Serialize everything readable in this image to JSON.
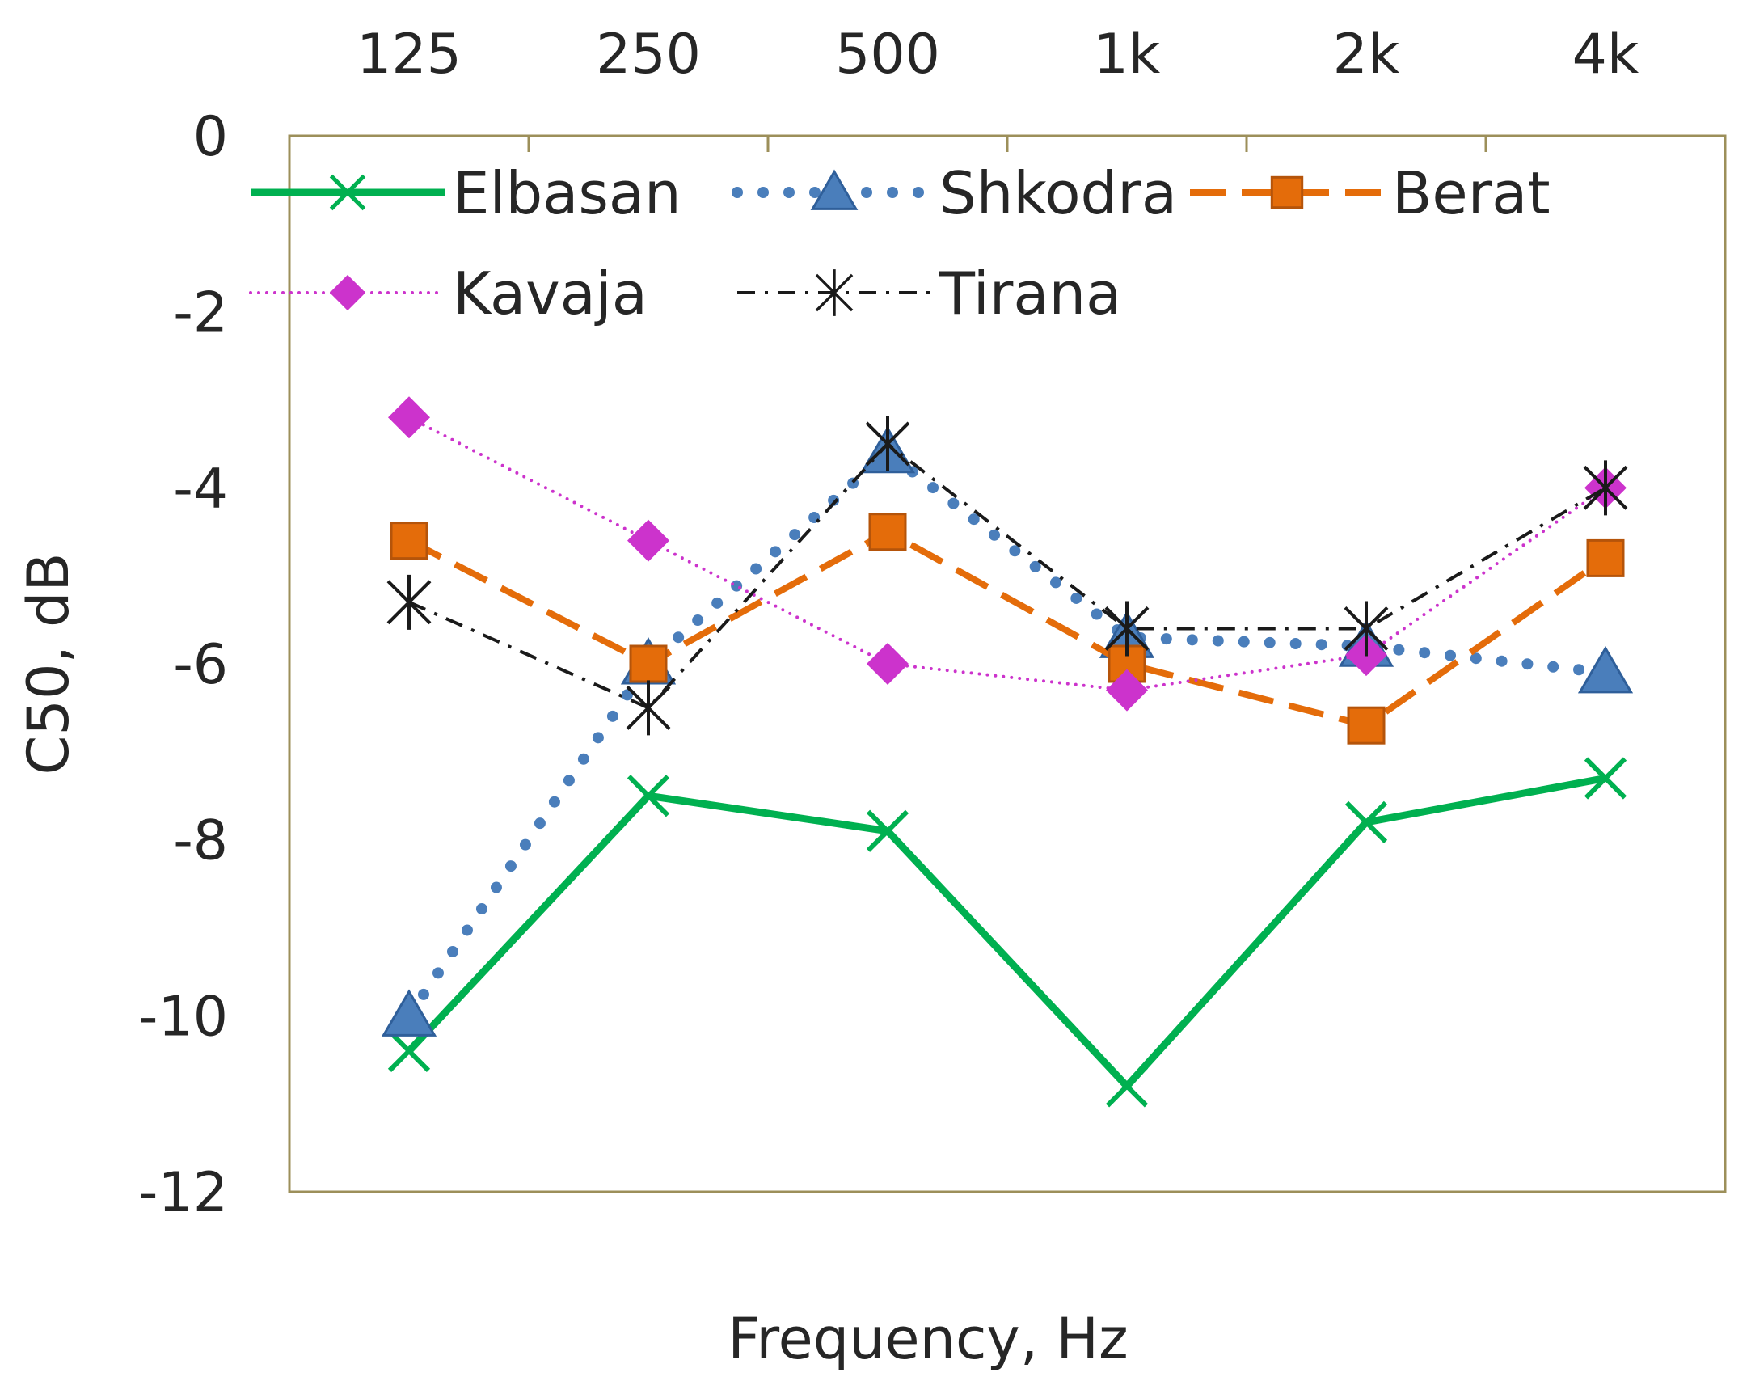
{
  "chart_data": {
    "type": "line",
    "title": "",
    "xlabel": "Frequency, Hz",
    "ylabel": "C50, dB",
    "categories": [
      "125",
      "250",
      "500",
      "1k",
      "2k",
      "4k"
    ],
    "ylim": [
      -12,
      0
    ],
    "yticks": [
      0,
      -2,
      -4,
      -6,
      -8,
      -10,
      -12
    ],
    "ytick_labels": [
      "0",
      "-2",
      "-4",
      "-6",
      "-8",
      "-10",
      "-12"
    ],
    "x_axis_position": "top",
    "grid": false,
    "legend_position": "top",
    "series": [
      {
        "name": "Elbasan",
        "color": "#00b050",
        "marker": "x",
        "line": "solid",
        "values": [
          -10.4,
          -7.5,
          -7.9,
          -10.8,
          -7.8,
          -7.3
        ]
      },
      {
        "name": "Shkodra",
        "color": "#4a7ebb",
        "marker": "triangle",
        "line": "dotted",
        "values": [
          -10.0,
          -6.0,
          -3.6,
          -5.7,
          -5.8,
          -6.1
        ]
      },
      {
        "name": "Berat",
        "color": "#e46c0a",
        "marker": "square",
        "line": "dashed",
        "values": [
          -4.6,
          -6.0,
          -4.5,
          -6.0,
          -6.7,
          -4.8
        ]
      },
      {
        "name": "Kavaja",
        "color": "#cc33cc",
        "marker": "diamond",
        "line": "dotted-fine",
        "values": [
          -3.2,
          -4.6,
          -6.0,
          -6.3,
          -5.9,
          -4.0
        ]
      },
      {
        "name": "Tirana",
        "color": "#1a1a1a",
        "marker": "star",
        "line": "dashdot",
        "values": [
          -5.3,
          -6.5,
          -3.5,
          -5.6,
          -5.6,
          -4.0
        ]
      }
    ]
  }
}
